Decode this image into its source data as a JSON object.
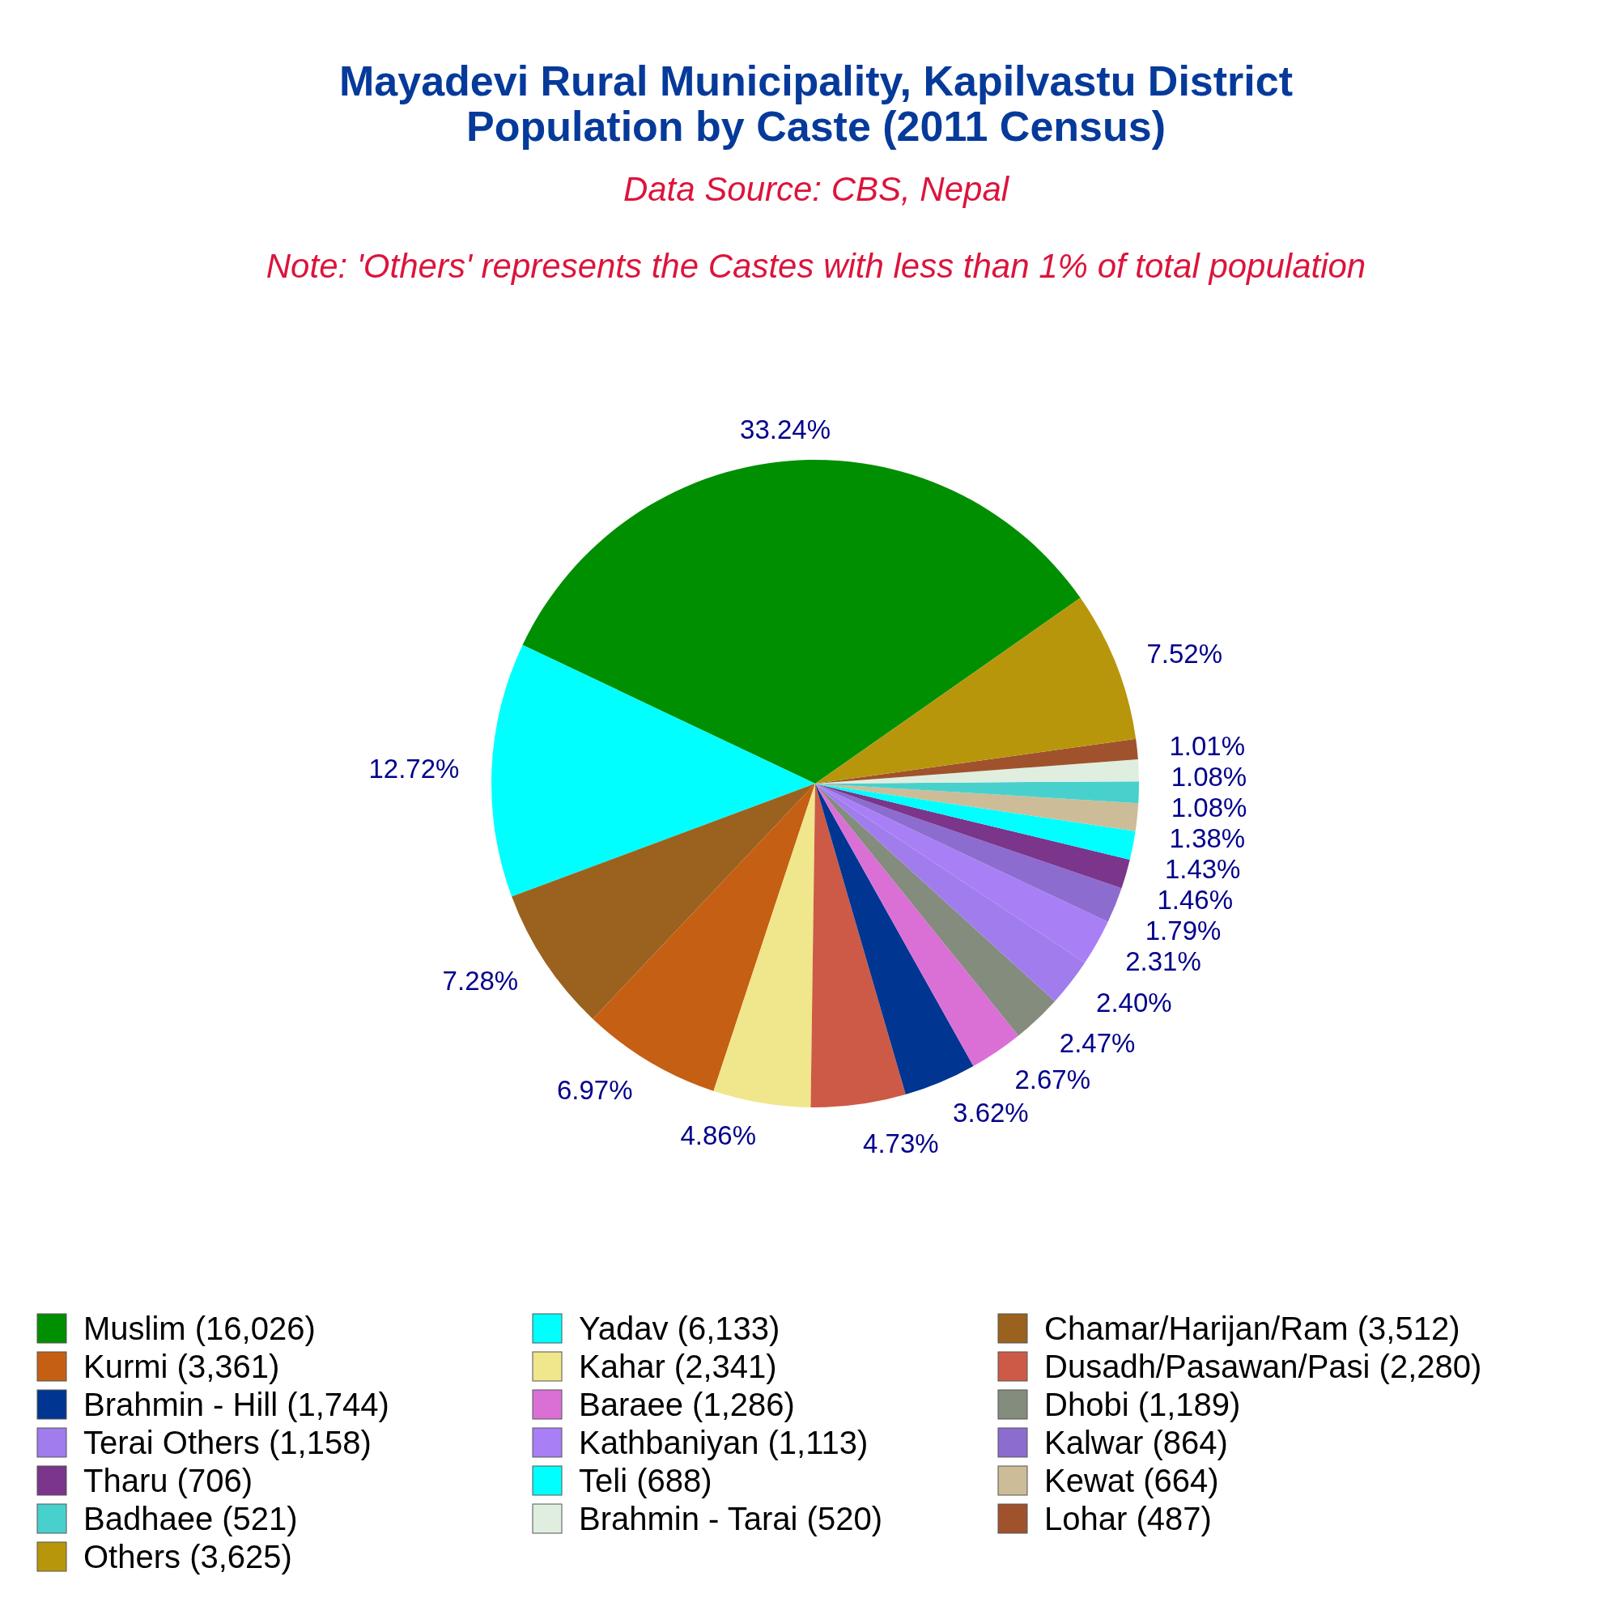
{
  "chart_data": {
    "type": "pie",
    "title": "Mayadevi Rural Municipality, Kapilvastu District\nPopulation by Caste (2011 Census)",
    "subtitle": "Data Source: CBS, Nepal",
    "annotations": [
      "Note: 'Others' represents the Castes with less than 1% of total population"
    ],
    "categories": [
      "Muslim (16,026)",
      "Yadav (6,133)",
      "Chamar/Harijan/Ram (3,512)",
      "Kurmi (3,361)",
      "Kahar (2,341)",
      "Dusadh/Pasawan/Pasi (2,280)",
      "Brahmin - Hill (1,744)",
      "Baraee (1,286)",
      "Dhobi (1,189)",
      "Terai Others (1,158)",
      "Kathbaniyan (1,113)",
      "Kalwar (864)",
      "Tharu (706)",
      "Teli (688)",
      "Kewat (664)",
      "Badhaee (521)",
      "Brahmin - Tarai (520)",
      "Lohar (487)",
      "Others (3,625)"
    ],
    "values": [
      33.24,
      12.72,
      7.28,
      6.97,
      4.86,
      4.73,
      3.62,
      2.67,
      2.47,
      2.4,
      2.31,
      1.79,
      1.46,
      1.43,
      1.38,
      1.08,
      1.08,
      1.01,
      7.52
    ],
    "value_labels": [
      "33.24%",
      "12.72%",
      "7.28%",
      "6.97%",
      "4.86%",
      "4.73%",
      "3.62%",
      "2.67%",
      "2.47%",
      "2.40%",
      "2.31%",
      "1.79%",
      "1.46%",
      "1.43%",
      "1.38%",
      "1.08%",
      "1.08%",
      "1.01%",
      "7.52%"
    ],
    "colors": [
      "#008f00",
      "#00ffff",
      "#9a621e",
      "#c55f14",
      "#f0e68c",
      "#cd5a46",
      "#003591",
      "#da70d6",
      "#848c7e",
      "#a07ced",
      "#a97ff6",
      "#8c6ccf",
      "#7b358a",
      "#00ffff",
      "#cdbc98",
      "#48d1cc",
      "#e0eedf",
      "#a0522d",
      "#b8960c"
    ],
    "legend": "bottom"
  }
}
